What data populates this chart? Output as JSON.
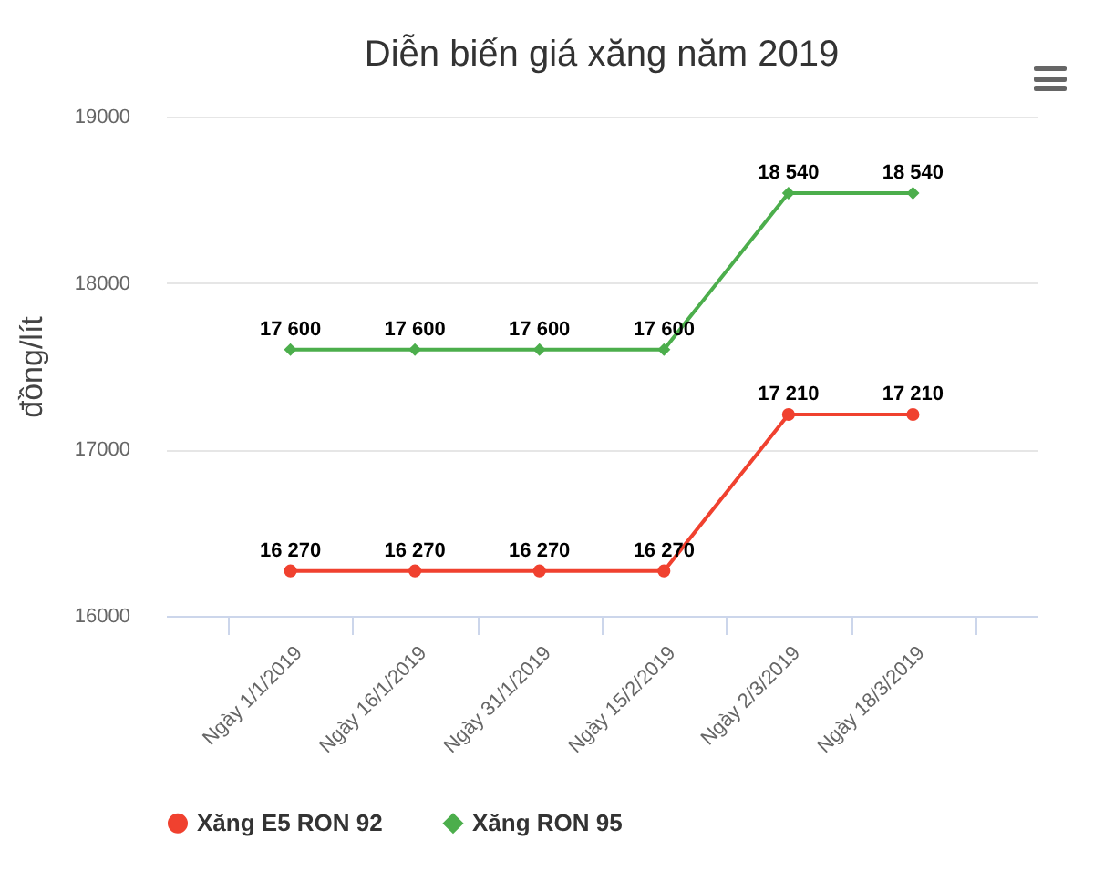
{
  "chart_data": {
    "type": "line",
    "title": "Diễn biến giá xăng năm 2019",
    "ylabel": "đồng/lít",
    "categories": [
      "Ngày 1/1/2019",
      "Ngày 16/1/2019",
      "Ngày 31/1/2019",
      "Ngày 15/2/2019",
      "Ngày 2/3/2019",
      "Ngày 18/3/2019"
    ],
    "series": [
      {
        "name": "Xăng E5 RON 92",
        "color": "#f0412f",
        "marker": "circle",
        "values": [
          16270,
          16270,
          16270,
          16270,
          17210,
          17210
        ],
        "value_labels": [
          "16 270",
          "16 270",
          "16 270",
          "16 270",
          "17 210",
          "17 210"
        ]
      },
      {
        "name": "Xăng RON 95",
        "color": "#4cae4c",
        "marker": "diamond",
        "values": [
          17600,
          17600,
          17600,
          17600,
          18540,
          18540
        ],
        "value_labels": [
          "17 600",
          "17 600",
          "17 600",
          "17 600",
          "18 540",
          "18 540"
        ]
      }
    ],
    "ylim": [
      16000,
      19000
    ],
    "yticks": [
      16000,
      17000,
      18000,
      19000
    ],
    "grid": "y",
    "legend": "bottom",
    "line_style": "solid"
  }
}
